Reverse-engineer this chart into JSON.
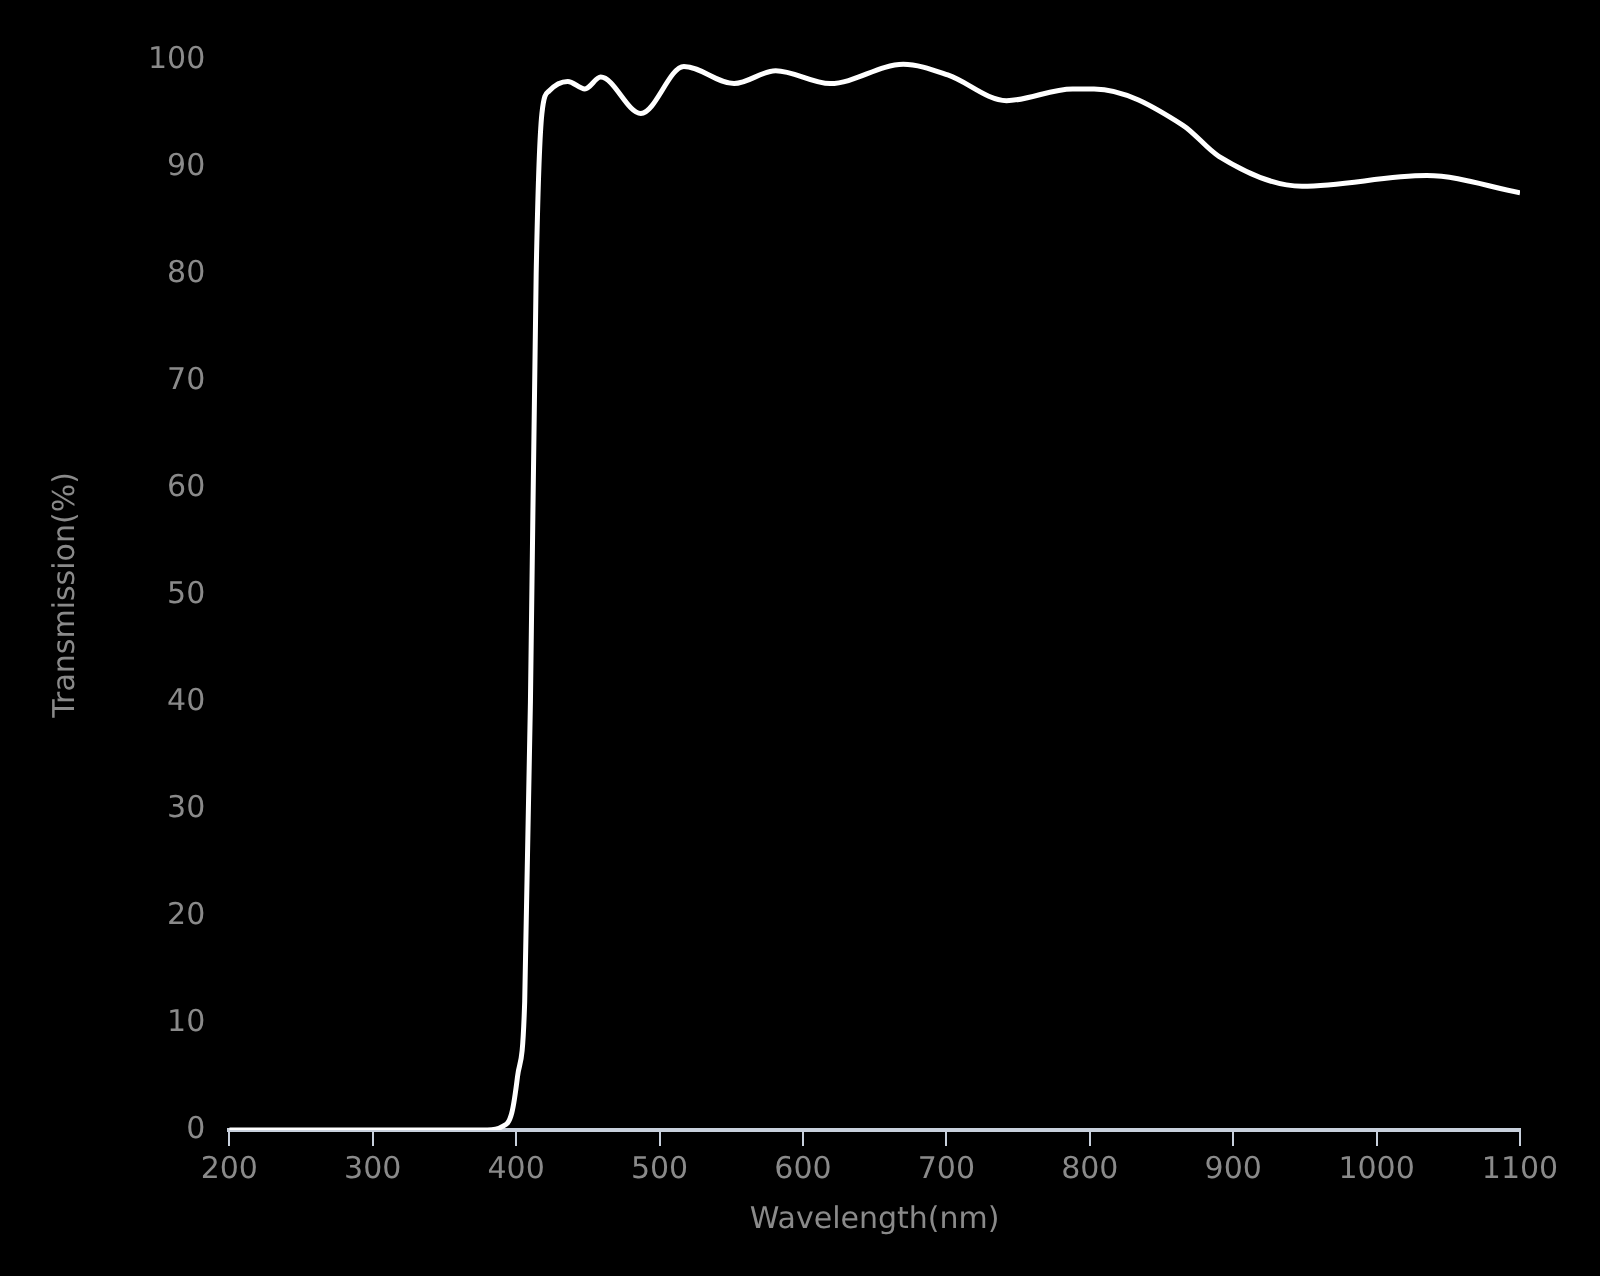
{
  "chart_data": {
    "type": "line",
    "xlabel": "Wavelength(nm)",
    "ylabel": "Transmission(%)",
    "xlim": [
      200,
      1100
    ],
    "xticks": [
      200,
      300,
      400,
      500,
      600,
      700,
      800,
      900,
      1000,
      1100
    ],
    "ylim": [
      0,
      100
    ],
    "yticks": [
      0,
      10,
      20,
      30,
      40,
      50,
      60,
      70,
      80,
      90,
      100
    ],
    "grid": false,
    "marker": "none",
    "line_style": "solid",
    "series": [
      {
        "color": "#ffffff",
        "x": [
          200,
          300,
          380,
          390,
          397,
          401,
          406,
          410,
          414,
          418,
          423,
          436,
          448,
          459,
          487,
          517,
          552,
          581,
          619,
          670,
          701,
          742,
          788,
          803,
          865,
          890,
          948,
          1035,
          1100
        ],
        "values": [
          0,
          0,
          0,
          0.3,
          1.6,
          5,
          12,
          40,
          80,
          95,
          97.1,
          98,
          97.3,
          98.4,
          95,
          99.4,
          97.8,
          99,
          97.8,
          99.6,
          98.6,
          96.2,
          97.3,
          97.3,
          93.9,
          91,
          88.2,
          89.2,
          87.6
        ]
      }
    ]
  }
}
